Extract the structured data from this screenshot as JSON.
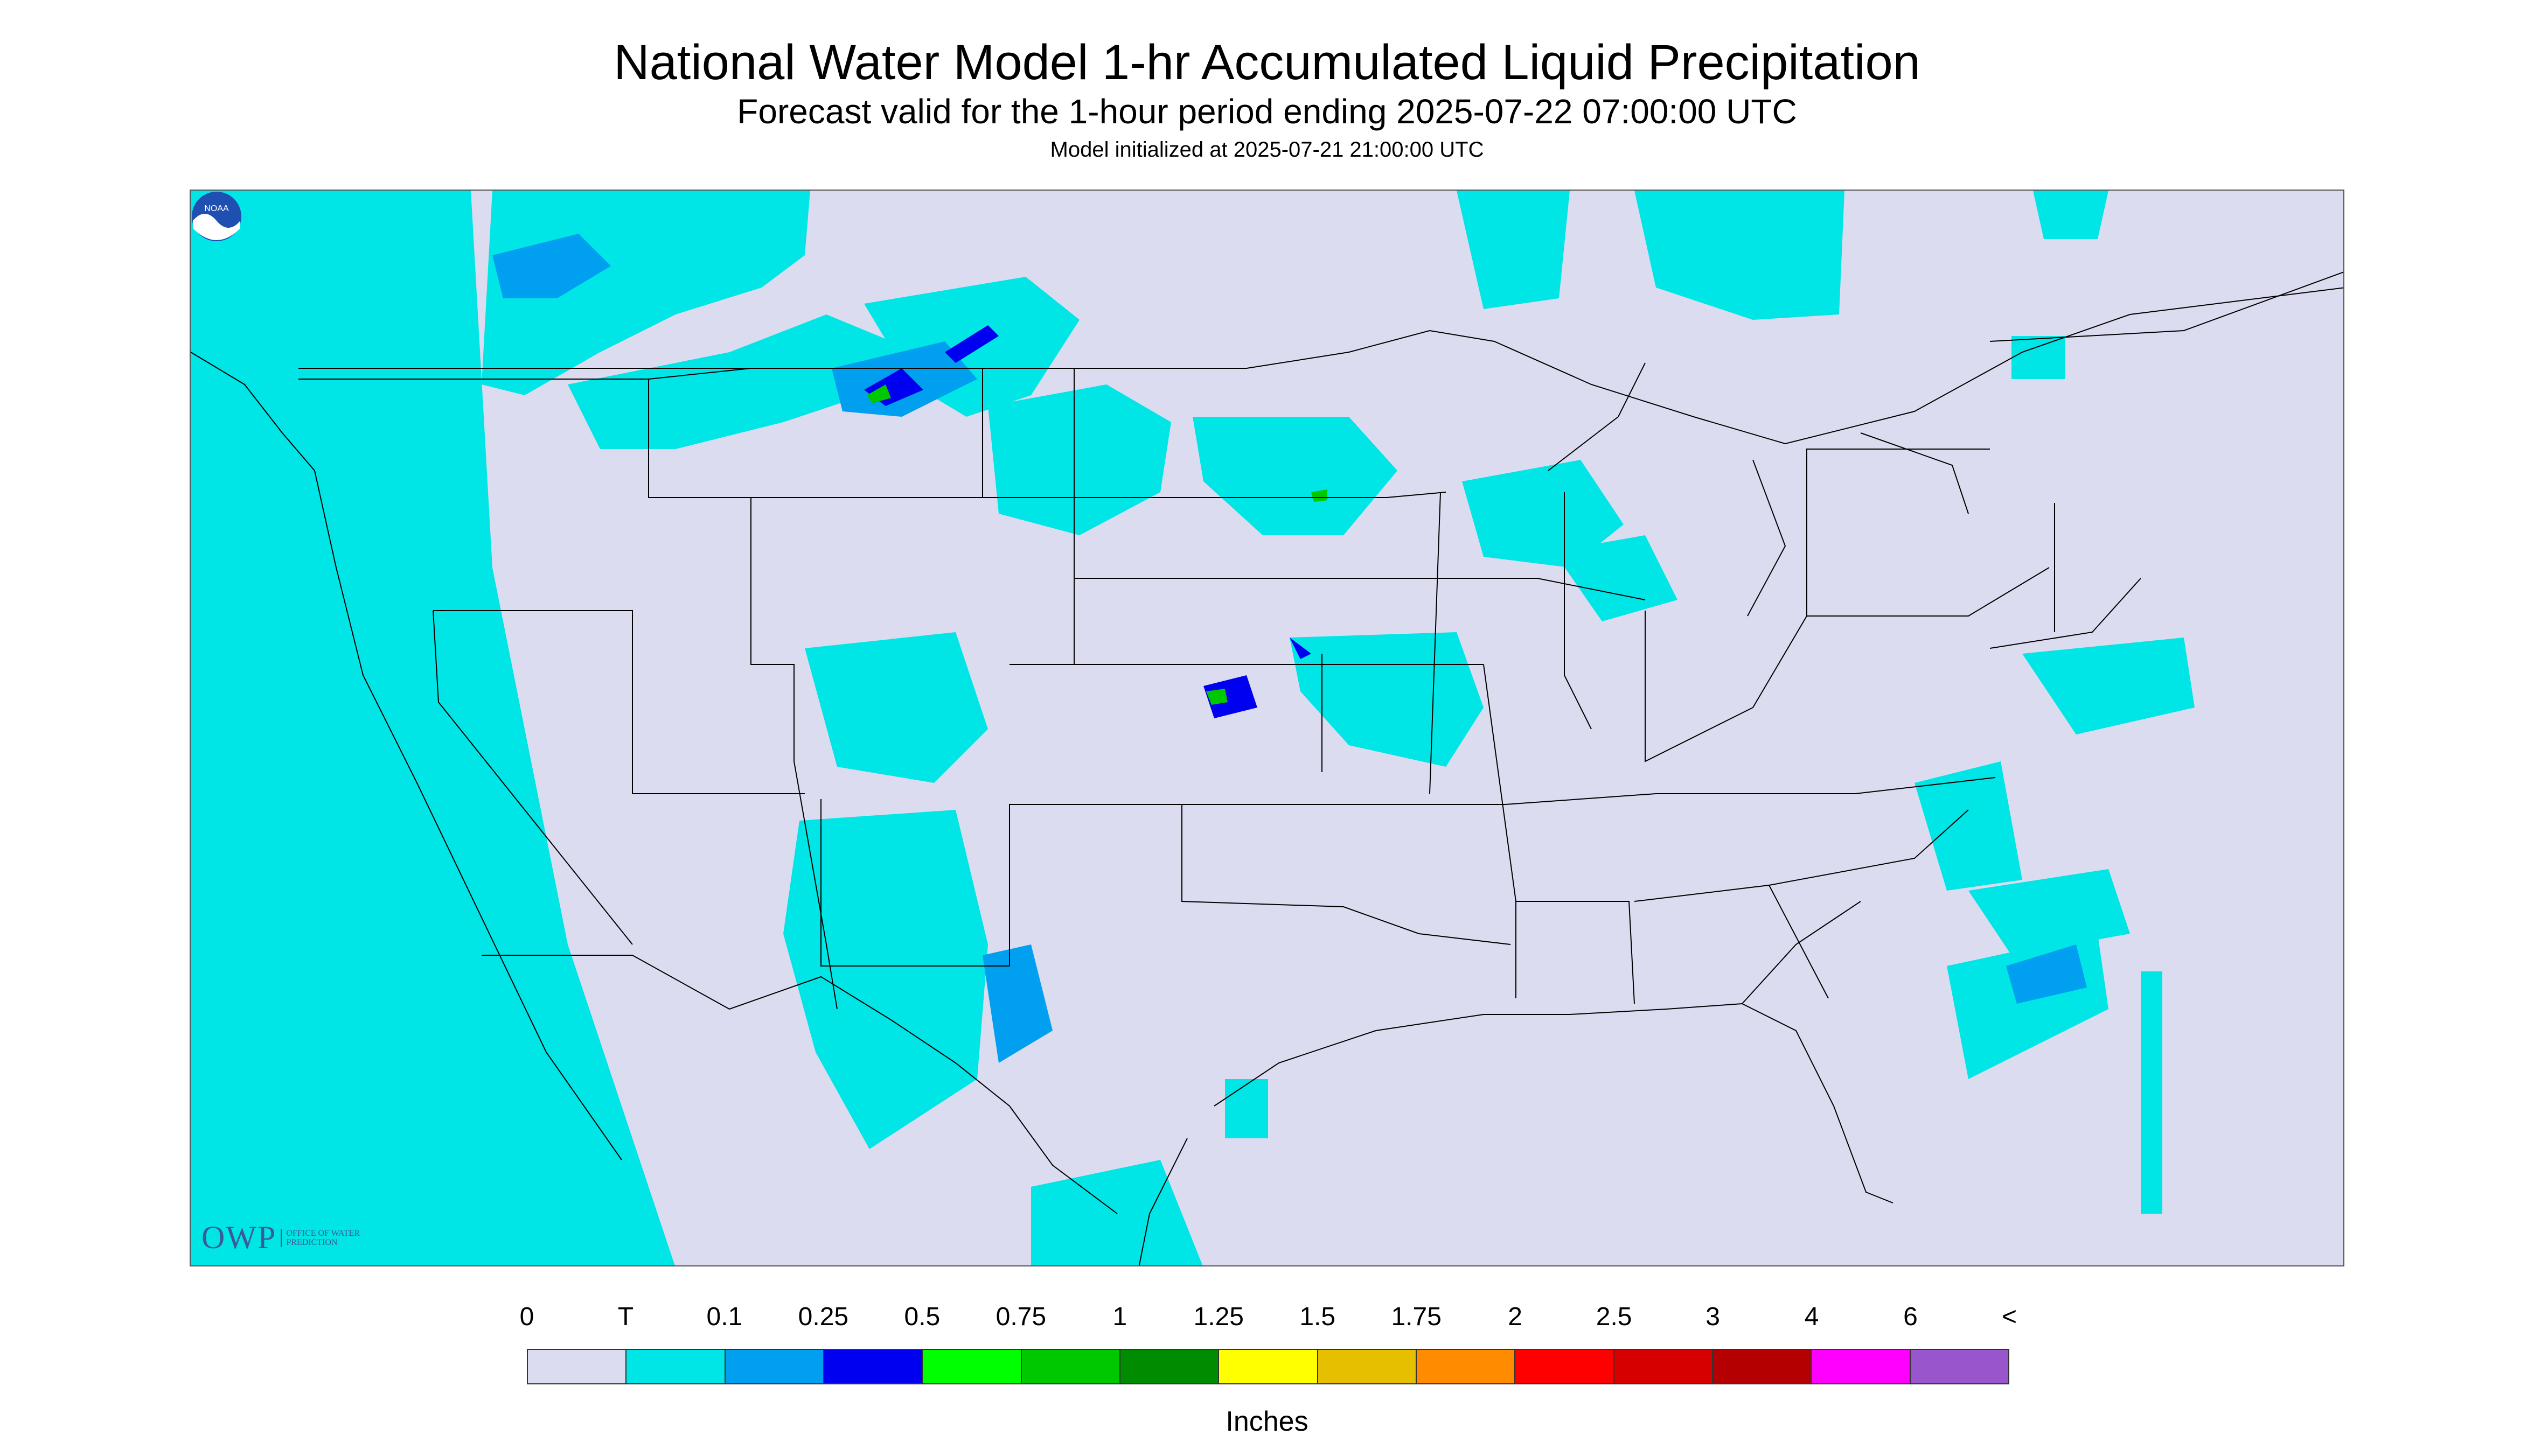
{
  "title": "National Water Model 1-hr Accumulated Liquid Precipitation",
  "subtitle": "Forecast valid for the 1-hour period ending 2025-07-22 07:00:00 UTC",
  "init_line": "Model initialized at 2025-07-21 21:00:00 UTC",
  "logo_owp": {
    "mark": "OWP",
    "text": "OFFICE OF WATER PREDICTION"
  },
  "logo_noaa": "NOAA",
  "legend": {
    "labels": [
      "0",
      "T",
      "0.1",
      "0.25",
      "0.5",
      "0.75",
      "1",
      "1.25",
      "1.5",
      "1.75",
      "2",
      "2.5",
      "3",
      "4",
      "6",
      "<"
    ],
    "colors": [
      "#dcdcf0",
      "#00e5e5",
      "#009fef",
      "#0000f0",
      "#00ff00",
      "#00c800",
      "#008c00",
      "#ffff00",
      "#e6c000",
      "#ff8c00",
      "#ff0000",
      "#d70000",
      "#b40000",
      "#ff00ff",
      "#9955cc"
    ],
    "units": "Inches"
  },
  "colors": {
    "no_data": "#dcdcf0",
    "trace": "#00e5e5",
    "light": "#009fef",
    "moderate": "#0000f0",
    "heavy": "#00ff00",
    "outside_domain": "#00e5e5"
  }
}
